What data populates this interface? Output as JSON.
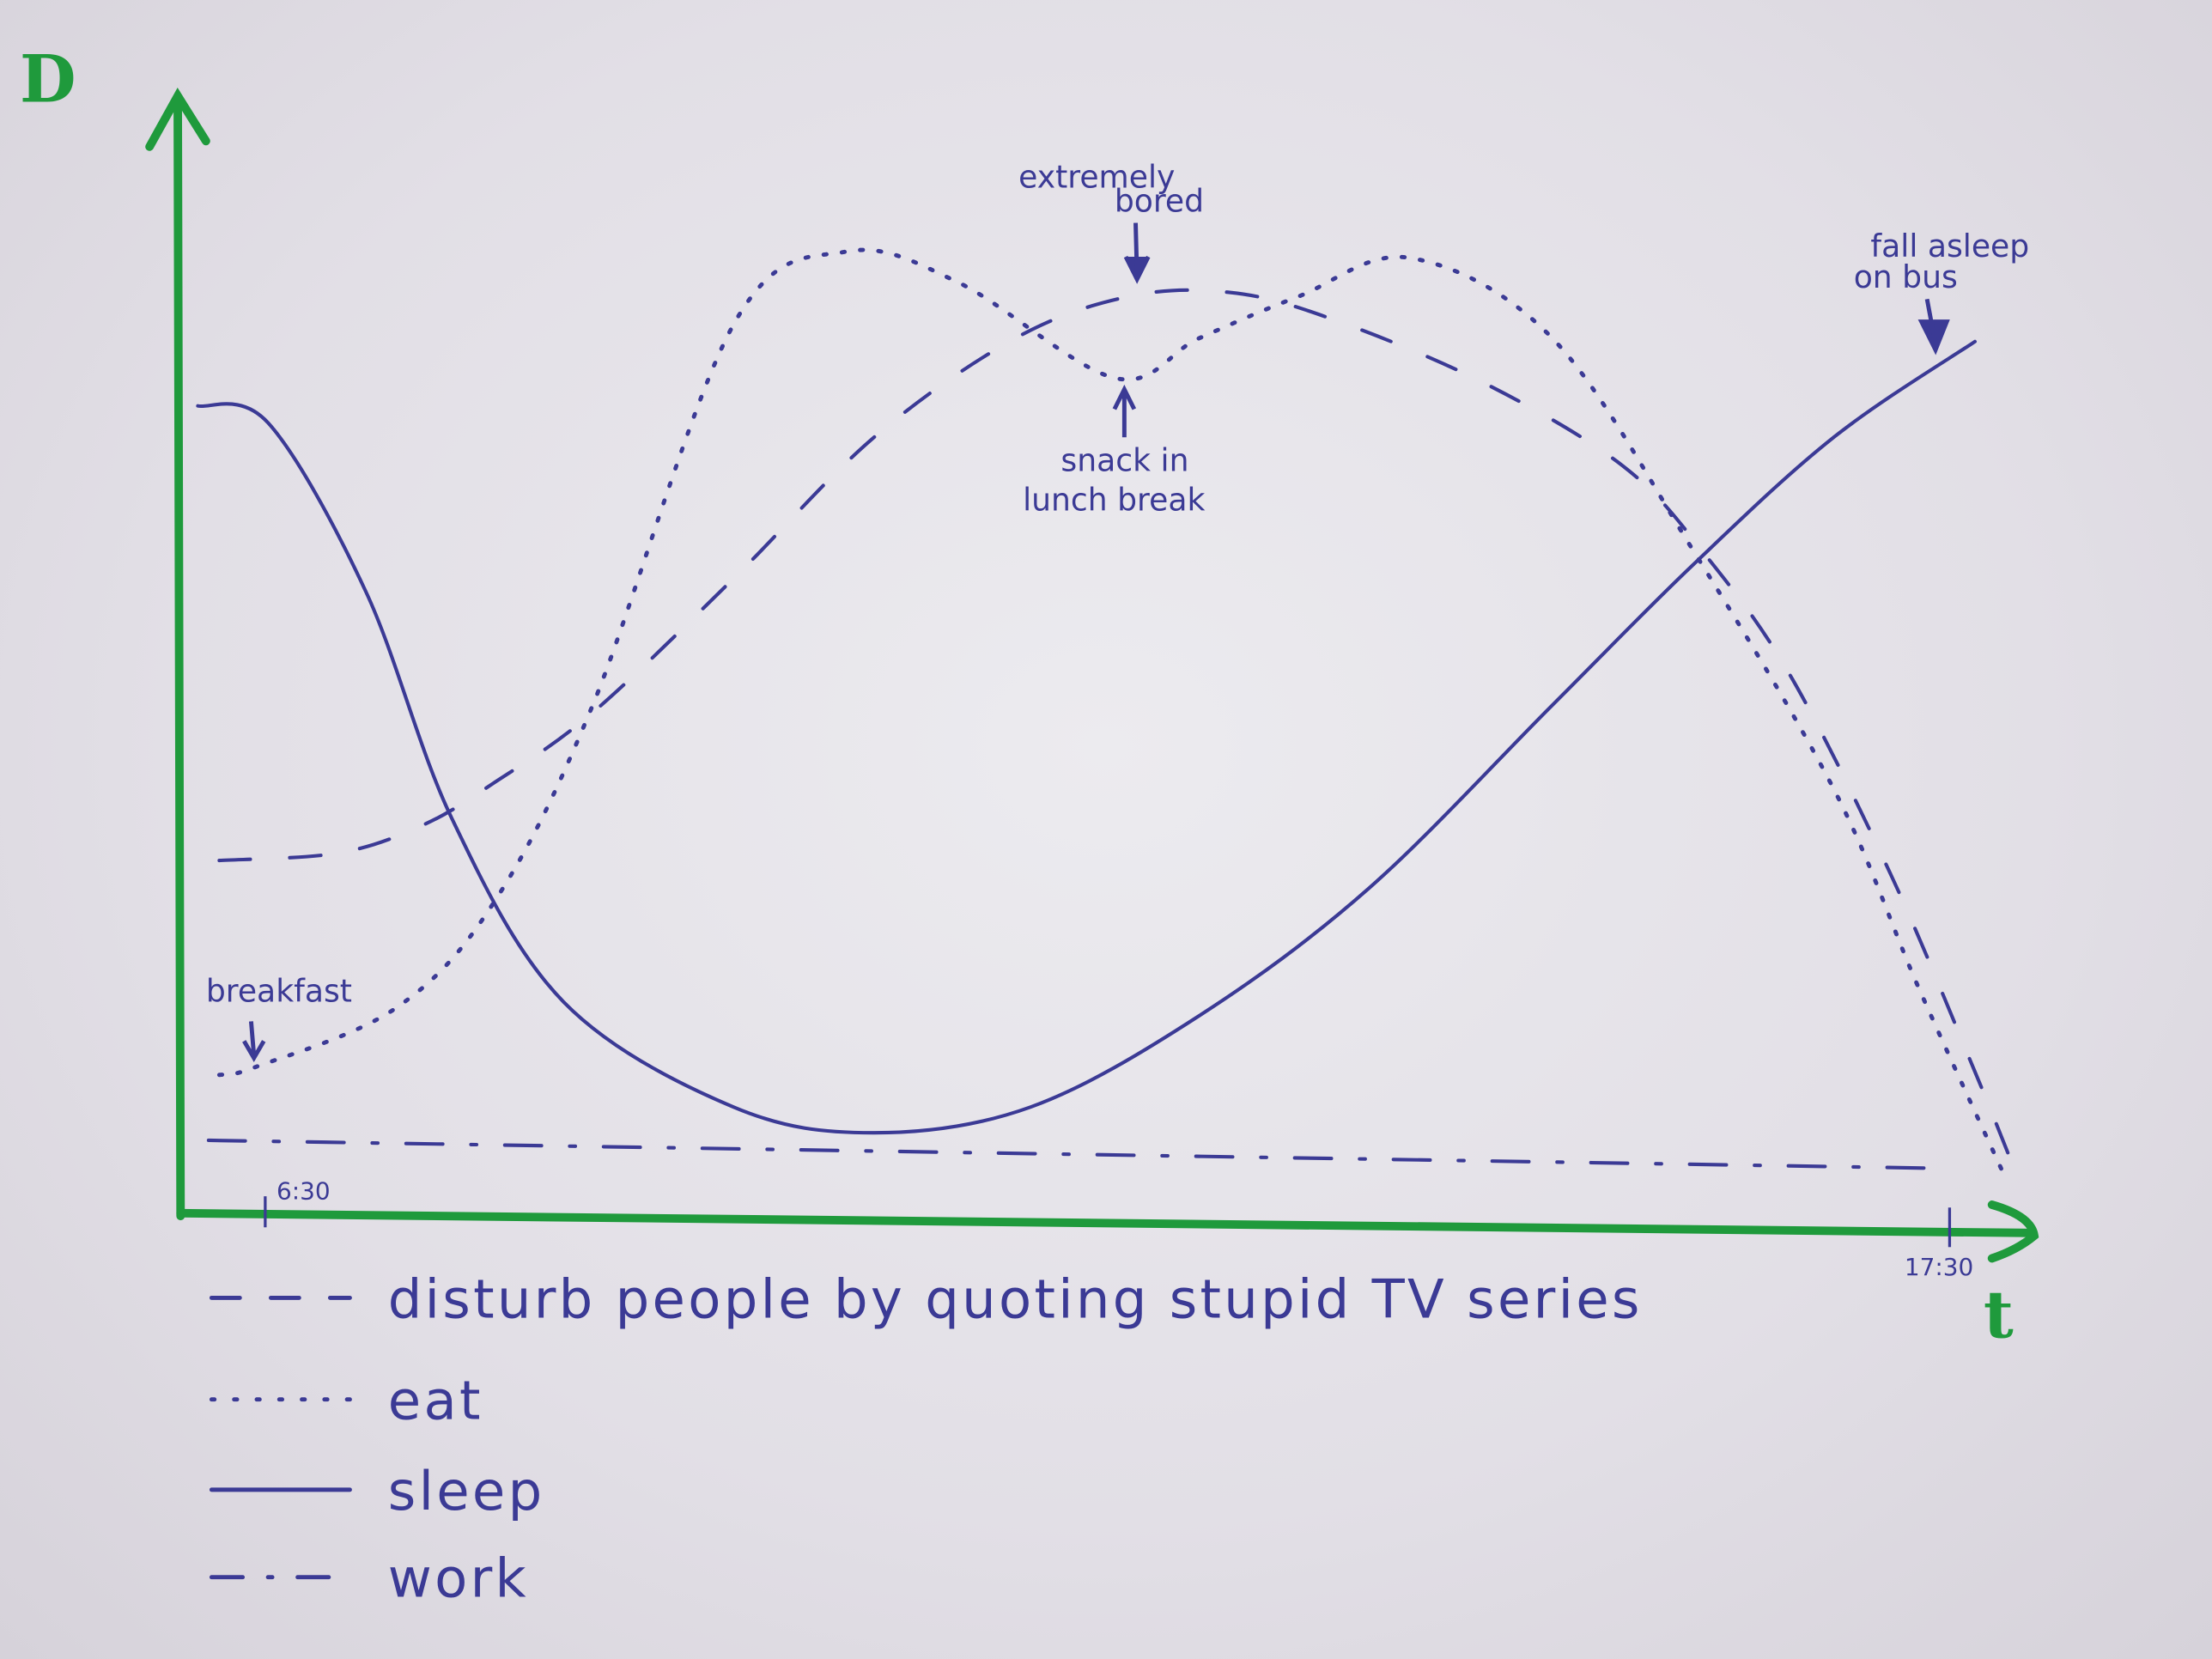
{
  "chart_data": {
    "type": "line",
    "title": "",
    "xlabel": "t",
    "ylabel": "D",
    "xlim": [
      6.06,
      18.2
    ],
    "ylim": [
      0,
      10
    ],
    "x_ticks": [
      {
        "value": 6.5,
        "label": "6:30"
      },
      {
        "value": 17.5,
        "label": "17:30"
      }
    ],
    "grid": false,
    "legend_placement": "bottom",
    "colors": {
      "axes": "#1f9a3c",
      "ink": "#3b3a95"
    },
    "series": [
      {
        "name": "disturb people by quoting stupid TV series",
        "style": "dashed",
        "points": [
          [
            6.2,
            3.29
          ],
          [
            6.98,
            3.36
          ],
          [
            7.53,
            3.62
          ],
          [
            7.99,
            4.01
          ],
          [
            8.64,
            4.67
          ],
          [
            9.56,
            5.92
          ],
          [
            10.48,
            7.24
          ],
          [
            11.4,
            8.16
          ],
          [
            12.14,
            8.55
          ],
          [
            12.79,
            8.59
          ],
          [
            13.43,
            8.36
          ],
          [
            14.44,
            7.76
          ],
          [
            15.37,
            6.97
          ],
          [
            15.92,
            6.12
          ],
          [
            16.47,
            5.0
          ],
          [
            17.12,
            3.16
          ],
          [
            17.67,
            1.32
          ],
          [
            17.95,
            0.33
          ]
        ]
      },
      {
        "name": "eat",
        "style": "dotted",
        "points": [
          [
            6.2,
            1.29
          ],
          [
            6.43,
            1.36
          ],
          [
            7.35,
            1.91
          ],
          [
            7.99,
            2.89
          ],
          [
            8.64,
            4.74
          ],
          [
            9.56,
            8.29
          ],
          [
            10.3,
            8.97
          ],
          [
            11.03,
            8.68
          ],
          [
            12.05,
            7.79
          ],
          [
            12.6,
            8.16
          ],
          [
            13.25,
            8.55
          ],
          [
            13.98,
            8.91
          ],
          [
            14.91,
            8.16
          ],
          [
            15.83,
            6.18
          ],
          [
            16.75,
            3.95
          ],
          [
            17.3,
            2.11
          ],
          [
            17.85,
            0.39
          ]
        ]
      },
      {
        "name": "sleep",
        "style": "solid",
        "points": [
          [
            6.06,
            7.53
          ],
          [
            6.52,
            7.37
          ],
          [
            7.16,
            5.79
          ],
          [
            7.72,
            3.68
          ],
          [
            8.45,
            1.97
          ],
          [
            9.56,
            0.99
          ],
          [
            10.48,
            0.75
          ],
          [
            11.5,
            0.99
          ],
          [
            12.6,
            1.84
          ],
          [
            13.71,
            3.03
          ],
          [
            14.91,
            4.74
          ],
          [
            15.83,
            6.05
          ],
          [
            16.75,
            7.24
          ],
          [
            17.67,
            8.13
          ]
        ]
      },
      {
        "name": "work",
        "style": "dash-dot",
        "points": [
          [
            6.13,
            0.68
          ],
          [
            17.39,
            0.42
          ]
        ]
      }
    ],
    "annotations": [
      {
        "lines": [
          "extremely",
          "bored"
        ],
        "series": "disturb people by quoting stupid TV series",
        "x": 12.2
      },
      {
        "lines": [
          "snack in",
          "lunch break"
        ],
        "series": "eat",
        "x": 12.1
      },
      {
        "lines": [
          "breakfast"
        ],
        "series": "eat",
        "x": 6.4
      },
      {
        "lines": [
          "fall asleep",
          "on bus"
        ],
        "series": "sleep",
        "x": 17.6
      }
    ]
  }
}
